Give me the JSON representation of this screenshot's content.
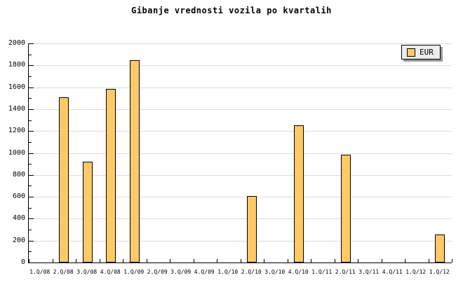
{
  "chart_data": {
    "type": "bar",
    "title": "Gibanje vrednosti vozila po kvartalih",
    "categories": [
      "1.Q/08",
      "2.Q/08",
      "3.Q/08",
      "4.Q/08",
      "1.Q/09",
      "2.Q/09",
      "3.Q/09",
      "4.Q/09",
      "1.Q/10",
      "2.Q/10",
      "3.Q/10",
      "4.Q/10",
      "1.Q/11",
      "2.Q/11",
      "3.Q/11",
      "4.Q/11",
      "1.Q/12",
      "1.Q/12"
    ],
    "series": [
      {
        "name": "EUR",
        "values": [
          null,
          1510,
          920,
          1585,
          1845,
          null,
          null,
          null,
          null,
          610,
          null,
          1250,
          null,
          985,
          null,
          null,
          null,
          255
        ]
      }
    ],
    "xlabel": "",
    "ylabel": "",
    "ylim": [
      0,
      2000
    ],
    "ytick_major_step": 200,
    "ytick_minor_step": 100,
    "grid": true,
    "legend_position": "top-right"
  },
  "colors": {
    "bar_fill": "#FFC966",
    "bar_border": "#000000",
    "gridline": "#DCDCDC",
    "axis": "#000000",
    "legend_bg": "#EDEDED",
    "legend_shadow": "#999999",
    "background": "#FFFFFF"
  }
}
